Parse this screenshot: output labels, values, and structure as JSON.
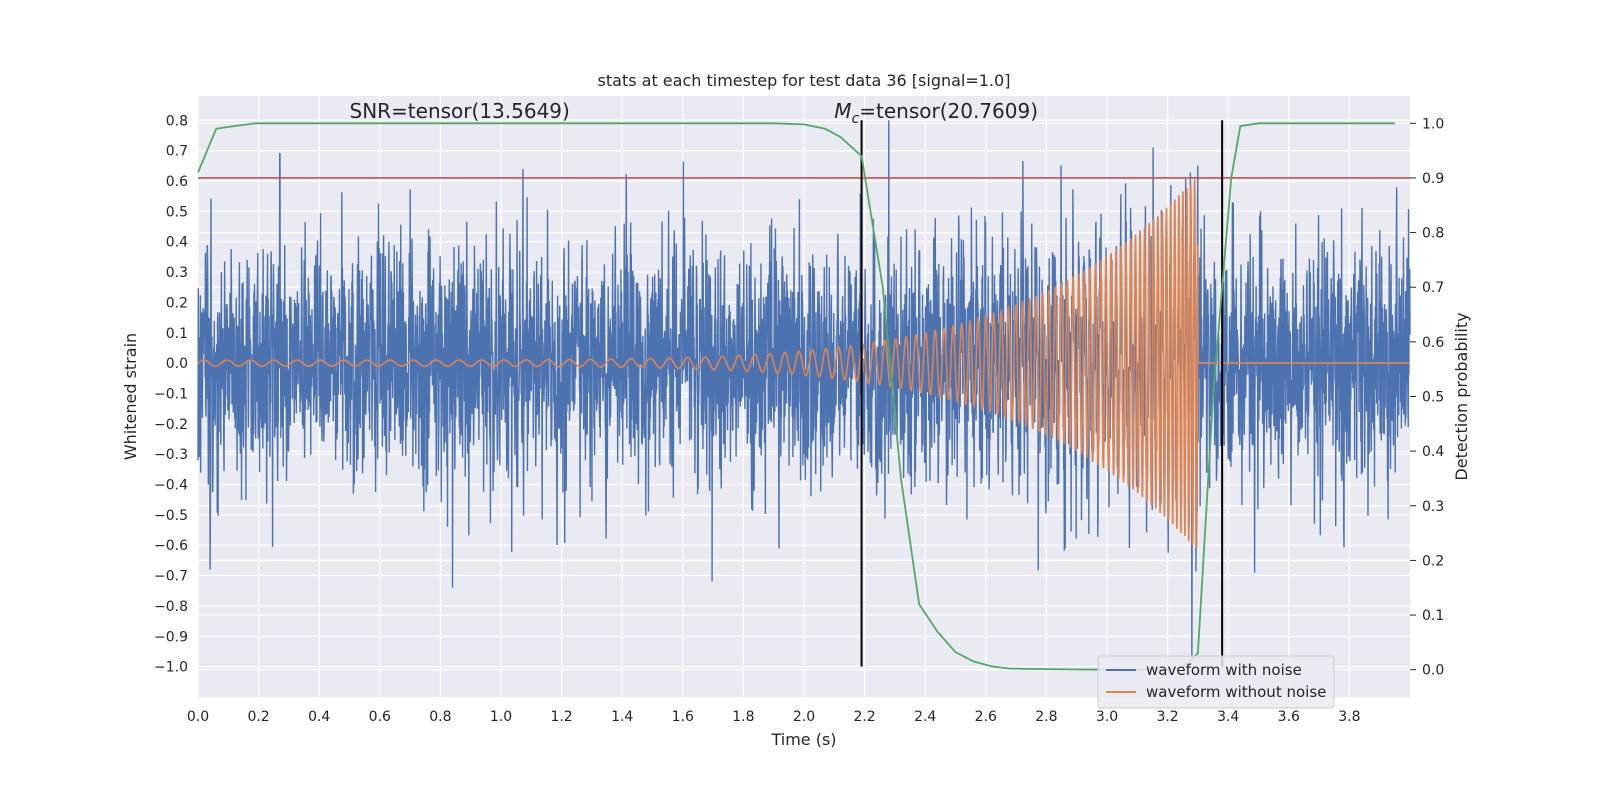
{
  "chart_data": {
    "type": "line",
    "title": "stats at each timestep for test data 36 [signal=1.0]",
    "xlabel": "Time (s)",
    "ylabel": "Whitened strain",
    "ylabel_right": "Detection probability",
    "xlim": [
      0.0,
      4.0
    ],
    "ylim": [
      -1.1,
      0.88
    ],
    "ylim_right": [
      -0.05,
      1.05
    ],
    "x_ticks": [
      "0.0",
      "0.2",
      "0.4",
      "0.6",
      "0.8",
      "1.0",
      "1.2",
      "1.4",
      "1.6",
      "1.8",
      "2.0",
      "2.2",
      "2.4",
      "2.6",
      "2.8",
      "3.0",
      "3.2",
      "3.4",
      "3.6",
      "3.8"
    ],
    "y_ticks": [
      "0.8",
      "0.7",
      "0.6",
      "0.5",
      "0.4",
      "0.3",
      "0.2",
      "0.1",
      "0.0",
      "−0.1",
      "−0.2",
      "−0.3",
      "−0.4",
      "−0.5",
      "−0.6",
      "−0.7",
      "−0.8",
      "−0.9",
      "−1.0"
    ],
    "y_right_ticks": [
      "1.0",
      "0.9",
      "0.8",
      "0.7",
      "0.6",
      "0.5",
      "0.4",
      "0.3",
      "0.2",
      "0.1",
      "0.0"
    ],
    "grid": true,
    "legend_position": "lower-right",
    "annotations": [
      {
        "text": "SNR=tensor(13.5649)",
        "x": 0.5,
        "y": 0.82
      },
      {
        "text_main": "M",
        "text_sub": "c",
        "text_rest": "=tensor(20.7609)",
        "x": 2.1,
        "y": 0.82
      }
    ],
    "threshold": {
      "axis": "right",
      "value": 0.9,
      "color": "#c44e52"
    },
    "vertical_lines": [
      {
        "x": 2.19,
        "ymin": -1.0,
        "ymax": 0.8
      },
      {
        "x": 3.38,
        "ymin": -1.0,
        "ymax": 0.8
      }
    ],
    "series": [
      {
        "name": "waveform with noise",
        "color": "#4c72b0",
        "axis": "left",
        "kind": "noise",
        "x_range": [
          0.0,
          4.0
        ],
        "approx_std": 0.2,
        "notable_peaks": [
          {
            "x": 0.27,
            "y": 0.69
          },
          {
            "x": 2.28,
            "y": 0.8
          },
          {
            "x": 3.28,
            "y": -0.97
          },
          {
            "x": 0.84,
            "y": -0.74
          },
          {
            "x": 0.04,
            "y": -0.68
          },
          {
            "x": 3.3,
            "y": 0.65
          }
        ]
      },
      {
        "name": "waveform without noise",
        "color": "#dd8452",
        "axis": "left",
        "kind": "chirp",
        "x_range": [
          0.0,
          3.3
        ],
        "merger_time": 3.3,
        "start_amplitude": 0.01,
        "end_amplitude": 0.62,
        "start_frequency_hz": 13,
        "end_frequency_hz": 80
      },
      {
        "name": "Detection probability",
        "color": "#55a868",
        "axis": "right",
        "x": [
          0.0,
          0.06,
          0.12,
          0.19,
          1.9,
          2.0,
          2.07,
          2.12,
          2.19,
          2.26,
          2.32,
          2.38,
          2.44,
          2.5,
          2.56,
          2.62,
          2.68,
          2.8,
          3.0,
          3.2,
          3.25,
          3.3,
          3.35,
          3.41,
          3.44,
          3.5,
          3.95
        ],
        "y": [
          0.91,
          0.99,
          0.995,
          1.0,
          1.0,
          0.998,
          0.99,
          0.975,
          0.94,
          0.7,
          0.35,
          0.12,
          0.07,
          0.032,
          0.015,
          0.006,
          0.002,
          0.001,
          0.0,
          0.0,
          0.005,
          0.03,
          0.5,
          0.9,
          0.995,
          1.0,
          1.0
        ]
      }
    ]
  }
}
